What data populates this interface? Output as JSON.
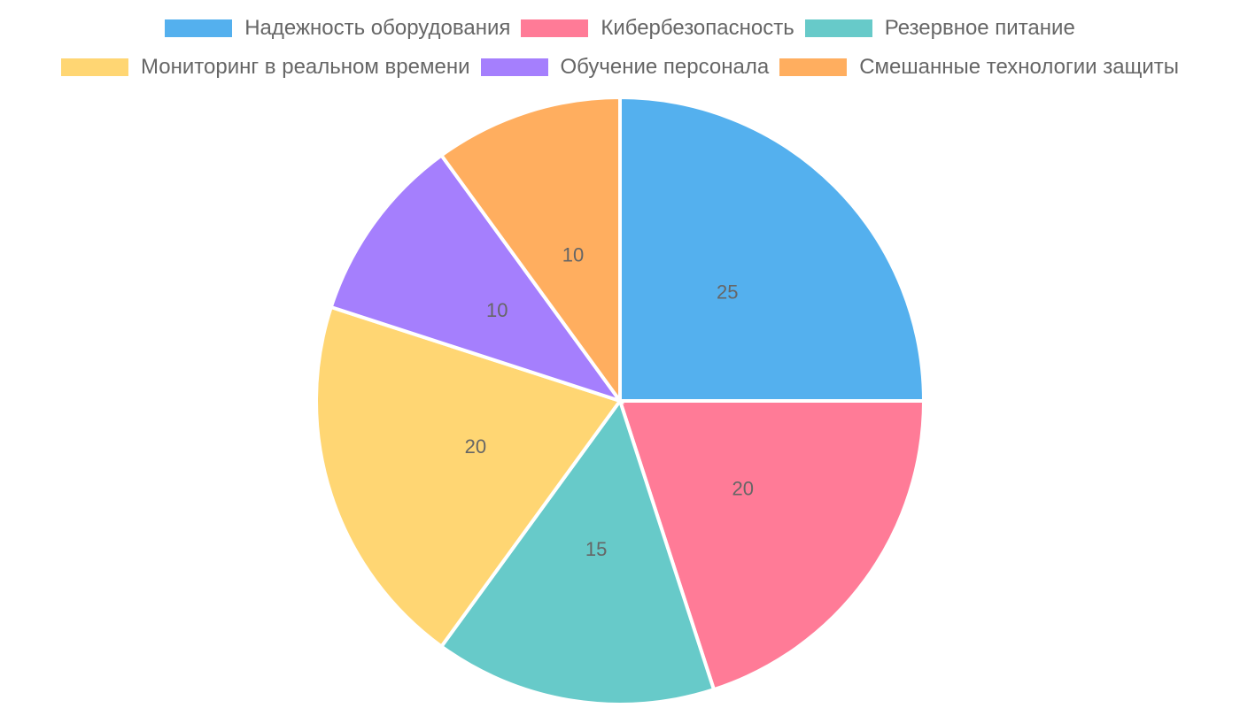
{
  "chart_data": {
    "type": "pie",
    "title": "",
    "categories": [
      "Надежность оборудования",
      "Кибербезопасность",
      "Резервное питание",
      "Мониторинг в реальном времени",
      "Обучение персонала",
      "Смешанные технологии защиты"
    ],
    "values": [
      25,
      20,
      15,
      20,
      10,
      10
    ],
    "colors": [
      "#54b0ee",
      "#ff7b97",
      "#67cac9",
      "#ffd673",
      "#a57ffd",
      "#ffae5f"
    ],
    "legend_position": "top",
    "data_labels": [
      "25",
      "20",
      "15",
      "20",
      "10",
      "10"
    ]
  },
  "legend": {
    "items": [
      {
        "label": "Надежность оборудования",
        "color": "#54b0ee"
      },
      {
        "label": "Кибербезопасность",
        "color": "#ff7b97"
      },
      {
        "label": "Резервное питание",
        "color": "#67cac9"
      },
      {
        "label": "Мониторинг в реальном времени",
        "color": "#ffd673"
      },
      {
        "label": "Обучение персонала",
        "color": "#a57ffd"
      },
      {
        "label": "Смешанные технологии защиты",
        "color": "#ffae5f"
      }
    ]
  }
}
